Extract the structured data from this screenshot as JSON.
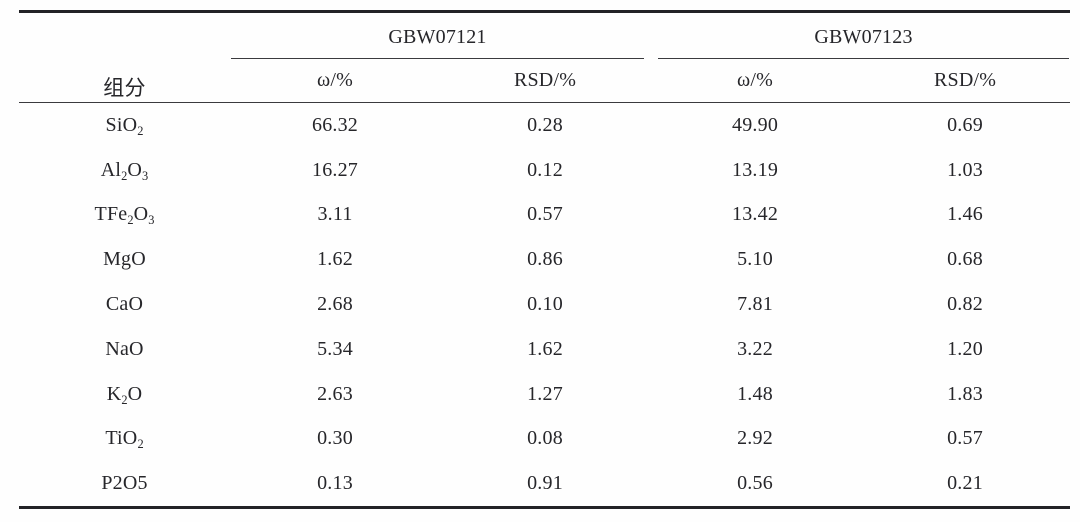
{
  "table": {
    "component_header": "组分",
    "groups": [
      {
        "label": "GBW07121",
        "subheaders": [
          "ω/%",
          "RSD/%"
        ]
      },
      {
        "label": "GBW07123",
        "subheaders": [
          "ω/%",
          "RSD/%"
        ]
      }
    ],
    "rows": [
      {
        "component": "SiO_2",
        "values": [
          "66.32",
          "0.28",
          "49.90",
          "0.69"
        ]
      },
      {
        "component": "Al_2O_3",
        "values": [
          "16.27",
          "0.12",
          "13.19",
          "1.03"
        ]
      },
      {
        "component": "TFe_2O_3",
        "values": [
          "3.11",
          "0.57",
          "13.42",
          "1.46"
        ]
      },
      {
        "component": "MgO",
        "values": [
          "1.62",
          "0.86",
          "5.10",
          "0.68"
        ]
      },
      {
        "component": "CaO",
        "values": [
          "2.68",
          "0.10",
          "7.81",
          "0.82"
        ]
      },
      {
        "component": "NaO",
        "values": [
          "5.34",
          "1.62",
          "3.22",
          "1.20"
        ]
      },
      {
        "component": "K_2O",
        "values": [
          "2.63",
          "1.27",
          "1.48",
          "1.83"
        ]
      },
      {
        "component": "TiO_2",
        "values": [
          "0.30",
          "0.08",
          "2.92",
          "0.57"
        ]
      },
      {
        "component": "P2O5",
        "values": [
          "0.13",
          "0.91",
          "0.56",
          "0.21"
        ]
      }
    ],
    "rule_color": "#3a3a3e",
    "border_color": "#222226",
    "text_color": "#26262a"
  }
}
